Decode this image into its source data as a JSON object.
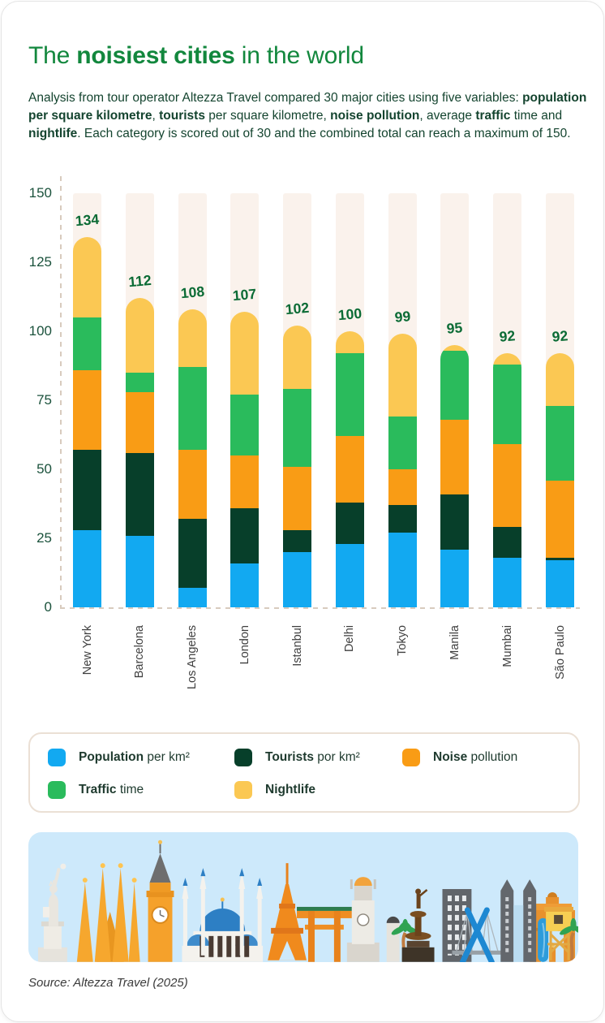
{
  "header": {
    "title": {
      "prefix": "The ",
      "bold": "noisiest cities",
      "suffix": " in the world"
    },
    "description_runs": [
      {
        "text": "Analysis from tour operator Altezza Travel compared 30 major cities using five variables: ",
        "bold": false
      },
      {
        "text": "population per square kilometre",
        "bold": true
      },
      {
        "text": ", ",
        "bold": false
      },
      {
        "text": "tourists",
        "bold": true
      },
      {
        "text": " per square kilometre, ",
        "bold": false
      },
      {
        "text": "noise pollution",
        "bold": true
      },
      {
        "text": ", average ",
        "bold": false
      },
      {
        "text": "traffic",
        "bold": true
      },
      {
        "text": " time and ",
        "bold": false
      },
      {
        "text": "nightlife",
        "bold": true
      },
      {
        "text": ". Each category is scored out of 30 and the combined total can reach a maximum of 150.",
        "bold": false
      }
    ]
  },
  "chart_data": {
    "type": "bar",
    "stacked": true,
    "title": "The noisiest cities in the world",
    "categories": [
      "New York",
      "Barcelona",
      "Los Angeles",
      "London",
      "Istanbul",
      "Delhi",
      "Tokyo",
      "Manila",
      "Mumbai",
      "São Paulo"
    ],
    "series": [
      {
        "key": "population",
        "name": "Population per km²",
        "color": "#12A9F1",
        "values": [
          28,
          26,
          7,
          16,
          20,
          23,
          27,
          21,
          18,
          17
        ]
      },
      {
        "key": "tourists",
        "name": "Tourists por km²",
        "color": "#073F2A",
        "values": [
          29,
          30,
          25,
          20,
          8,
          15,
          10,
          20,
          11,
          1
        ]
      },
      {
        "key": "noise",
        "name": "Noise pollution",
        "color": "#F99C15",
        "values": [
          29,
          22,
          25,
          19,
          23,
          24,
          13,
          27,
          30,
          28
        ]
      },
      {
        "key": "traffic",
        "name": "Traffic time",
        "color": "#2ABB5C",
        "values": [
          19,
          7,
          30,
          22,
          28,
          30,
          19,
          25,
          29,
          27
        ]
      },
      {
        "key": "nightlife",
        "name": "Nightlife",
        "color": "#FBC853",
        "values": [
          29,
          27,
          21,
          30,
          23,
          8,
          30,
          2,
          4,
          19
        ]
      }
    ],
    "totals": [
      134,
      112,
      108,
      107,
      102,
      100,
      99,
      95,
      92,
      92
    ],
    "y_axis": {
      "min": 0,
      "max": 150,
      "ticks": [
        0,
        25,
        50,
        75,
        100,
        125,
        150
      ]
    },
    "grid": false,
    "legend_position": "bottom",
    "track_color": "#FAF2EC"
  },
  "legend": {
    "items": [
      {
        "key": "population",
        "bold": "Population",
        "rest": " per km²"
      },
      {
        "key": "tourists",
        "bold": "Tourists",
        "rest": " por km²"
      },
      {
        "key": "noise",
        "bold": "Noise",
        "rest": " pollution"
      },
      {
        "key": "traffic",
        "bold": "Traffic",
        "rest": " time"
      },
      {
        "key": "nightlife",
        "bold": "Nightlife",
        "rest": ""
      }
    ]
  },
  "source": "Source: Altezza Travel (2025)",
  "colors": {
    "title_green": "#12873D",
    "body_text": "#14442F",
    "value_label": "#0B6B35",
    "tick_label": "#1B523C",
    "axis_dash": "#D8CBBE",
    "track": "#FAF2EC",
    "legend_border": "#EBE0D5",
    "sky_background": "#CDE9FB",
    "city_label": "#3F3F3F"
  }
}
